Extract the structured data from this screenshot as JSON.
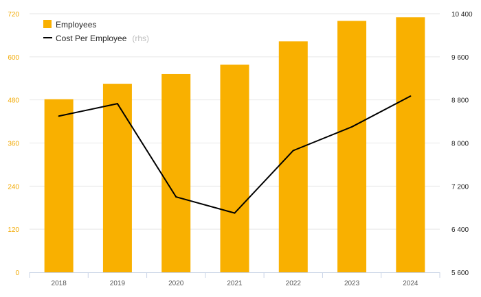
{
  "chart_data": {
    "type": "bar",
    "categories": [
      "2018",
      "2019",
      "2020",
      "2021",
      "2022",
      "2023",
      "2024"
    ],
    "series": [
      {
        "name": "Employees",
        "type": "bar",
        "axis": "left",
        "color": "#f9b000",
        "values": [
          482,
          525,
          552,
          578,
          643,
          700,
          710
        ]
      },
      {
        "name": "Cost Per Employee",
        "name_suffix": "(rhs)",
        "type": "line",
        "axis": "right",
        "color": "#000000",
        "values": [
          8500,
          8730,
          7000,
          6700,
          7860,
          8300,
          8870
        ]
      }
    ],
    "y_left": {
      "ticks": [
        "0",
        "120",
        "240",
        "360",
        "480",
        "600",
        "720"
      ],
      "ylim": [
        0,
        720
      ]
    },
    "y_right": {
      "ticks": [
        "5 600",
        "6 400",
        "7 200",
        "8 000",
        "8 800",
        "9 600",
        "10 400"
      ],
      "ylim": [
        5600,
        10400
      ]
    },
    "grid": true,
    "legend_position": "top-left",
    "colors": {
      "left_axis": "#f2a900",
      "grid": "#e6e6e6"
    }
  }
}
